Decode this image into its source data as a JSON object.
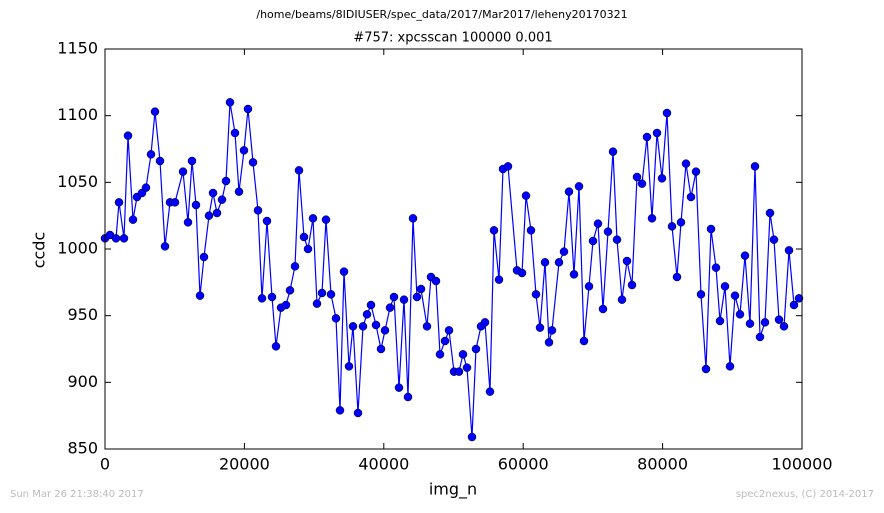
{
  "chart_data": {
    "type": "line",
    "suptitle": "/home/beams/8IDIUSER/spec_data/2017/Mar2017/leheny20170321",
    "title": "#757: xpcsscan 100000 0.001",
    "x_label": "img_n",
    "y_label": "ccdc",
    "footer_left": "Sun Mar 26 21:38:40 2017",
    "footer_right": "spec2nexus, (C) 2014-2017",
    "x": [
      0,
      717,
      1578,
      2009,
      2726,
      3300,
      4017,
      4591,
      5308,
      5882,
      6600,
      7174,
      7891,
      8608,
      9326,
      10043,
      11191,
      11908,
      12482,
      13056,
      13630,
      14204,
      14921,
      15495,
      16069,
      16786,
      17360,
      17934,
      18651,
      19225,
      19943,
      20517,
      21234,
      21951,
      22525,
      23242,
      23960,
      24534,
      25251,
      25968,
      26542,
      27260,
      27834,
      28551,
      29125,
      29842,
      30416,
      31133,
      31707,
      32425,
      33142,
      33716,
      34290,
      35007,
      35581,
      36298,
      37016,
      37590,
      38164,
      38881,
      39598,
      40172,
      40889,
      41463,
      42181,
      42898,
      43472,
      44189,
      44763,
      45337,
      46198,
      46772,
      47489,
      48063,
      48780,
      49354,
      50072,
      50789,
      51363,
      51937,
      52654,
      53228,
      53945,
      54519,
      55237,
      55811,
      56528,
      57102,
      57819,
      59110,
      59828,
      60402,
      61119,
      61836,
      62410,
      63128,
      63702,
      64132,
      65136,
      65854,
      66571,
      67288,
      68006,
      68723,
      69440,
      70014,
      70732,
      71449,
      72166,
      72884,
      73458,
      74175,
      74892,
      75610,
      76327,
      77044,
      77762,
      78479,
      79197,
      79914,
      80631,
      81349,
      82066,
      82640,
      83357,
      84075,
      84792,
      85509,
      86227,
      86944,
      87661,
      88235,
      88953,
      89670,
      90387,
      91105,
      91822,
      92539,
      93257,
      93974,
      94692,
      95409,
      95983,
      96700,
      97418,
      98135,
      98852,
      99570
    ],
    "series": [
      {
        "color": "#0000ff",
        "values": [
          1008,
          1010.5,
          1008,
          1035,
          1008,
          1085,
          1022,
          1039,
          1042,
          1046,
          1071,
          1103,
          1066,
          1002,
          1035,
          1035,
          1058,
          1020,
          1066,
          1033,
          965,
          994,
          1025,
          1042,
          1027,
          1037,
          1051,
          1110,
          1087,
          1043,
          1074,
          1105,
          1065,
          1029,
          963,
          1021,
          964,
          927,
          956,
          958,
          969,
          987,
          1059,
          1009,
          1000,
          1023,
          959,
          967,
          1022,
          966,
          948,
          879,
          983,
          912,
          942,
          877,
          942,
          951,
          958,
          943,
          925,
          939,
          956,
          964,
          896,
          962,
          889,
          1023,
          964,
          970,
          942,
          979,
          976,
          921,
          931,
          939,
          908,
          908,
          921,
          911,
          859,
          925,
          942,
          945,
          893,
          1014,
          977,
          1060,
          1062,
          984,
          982,
          1040,
          1014,
          966,
          941,
          990,
          930,
          939,
          990,
          998,
          1043,
          981,
          1047,
          931,
          972,
          1006,
          1019,
          955,
          1013,
          1073,
          1007,
          962,
          991,
          973,
          1054,
          1049,
          1084,
          1023,
          1087,
          1053,
          1102,
          1017,
          979,
          1020,
          1064,
          1039,
          1058,
          966,
          910,
          1015,
          986,
          946,
          972,
          912,
          965,
          951,
          995,
          944,
          1062,
          934,
          945,
          1027,
          1007,
          947,
          942,
          999,
          958,
          963
        ]
      }
    ],
    "xlim": [
      0,
      100000
    ],
    "xticks": [
      0,
      20000,
      40000,
      60000,
      80000,
      100000
    ],
    "ylim": [
      850,
      1150
    ],
    "yticks": [
      850,
      900,
      950,
      1000,
      1050,
      1100,
      1150
    ],
    "grid": false
  }
}
